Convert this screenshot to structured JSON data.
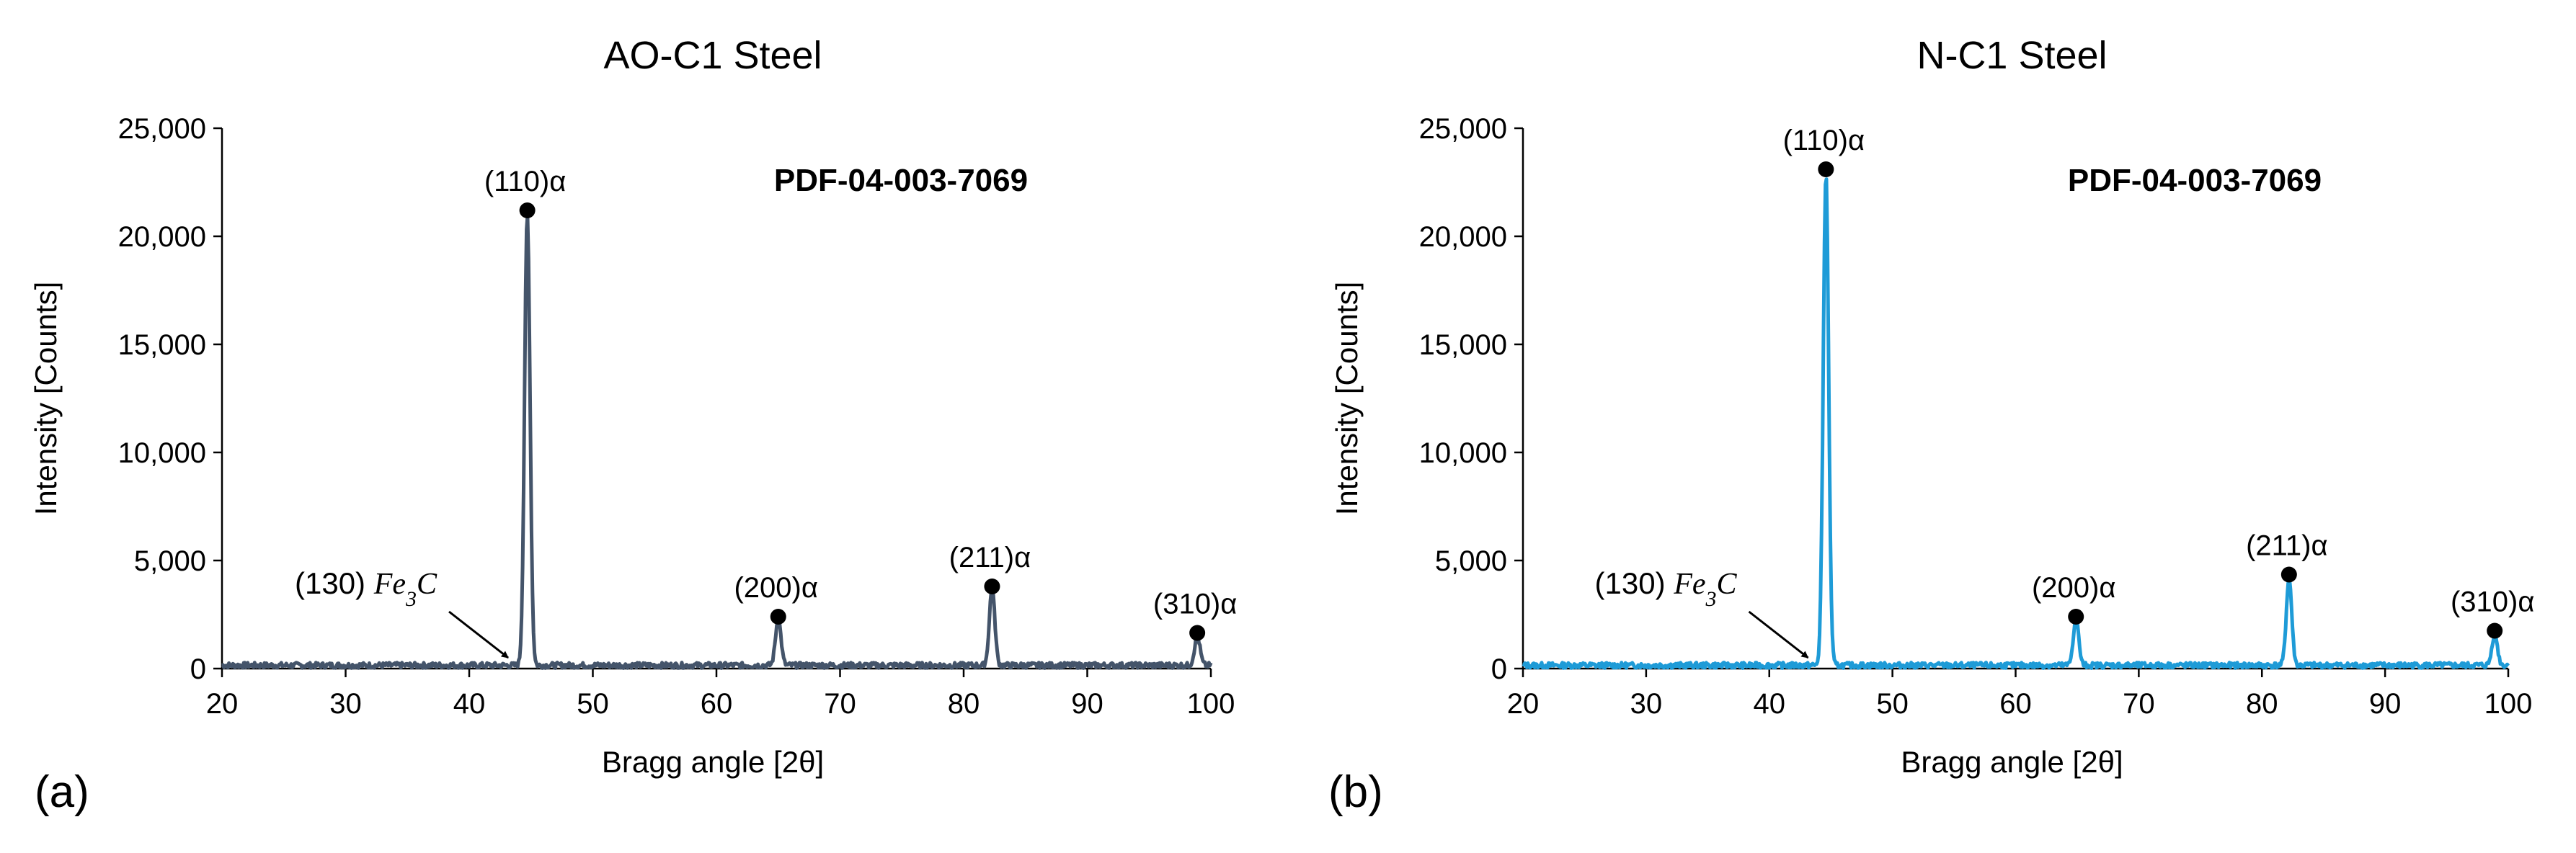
{
  "chart_data": [
    {
      "type": "line",
      "panel_label": "(a)",
      "title": "AO-C1 Steel",
      "xlabel": "Bragg angle [2θ]",
      "ylabel": "Intensity [Counts]",
      "xlim": [
        20,
        100
      ],
      "ylim": [
        0,
        25000
      ],
      "x_ticks": [
        "20",
        "30",
        "40",
        "50",
        "60",
        "70",
        "80",
        "90",
        "100"
      ],
      "y_ticks": [
        "0",
        "5,000",
        "10,000",
        "15,000",
        "20,000",
        "25,000"
      ],
      "grid": false,
      "color": "#44546a",
      "reference_card": "PDF-04-003-7069",
      "baseline": 150,
      "series": [
        {
          "peaks": [
            {
              "x": 44.7,
              "y": 21000
            },
            {
              "x": 65.0,
              "y": 2300
            },
            {
              "x": 82.3,
              "y": 3700
            },
            {
              "x": 98.9,
              "y": 1500
            }
          ]
        }
      ],
      "annotations": [
        {
          "label": "(110)α",
          "x": 44.7,
          "y": 21200
        },
        {
          "label": "(200)α",
          "x": 65.0,
          "y": 2400
        },
        {
          "label": "(211)α",
          "x": 82.3,
          "y": 3800
        },
        {
          "label": "(310)α",
          "x": 98.9,
          "y": 1650
        },
        {
          "label_prefix": "(130)",
          "label_math": "Fe",
          "label_sub": "3",
          "label_suffix": "C",
          "x": 43.5,
          "y": 300,
          "arrow": true
        }
      ]
    },
    {
      "type": "line",
      "panel_label": "(b)",
      "title": "N-C1 Steel",
      "xlabel": "Bragg angle [2θ]",
      "ylabel": "Intensity [Counts]",
      "xlim": [
        20,
        100
      ],
      "ylim": [
        0,
        25000
      ],
      "x_ticks": [
        "20",
        "30",
        "40",
        "50",
        "60",
        "70",
        "80",
        "90",
        "100"
      ],
      "y_ticks": [
        "0",
        "5,000",
        "10,000",
        "15,000",
        "20,000",
        "25,000"
      ],
      "grid": false,
      "color": "#1e9bd7",
      "reference_card": "PDF-04-003-7069",
      "baseline": 150,
      "series": [
        {
          "peaks": [
            {
              "x": 44.6,
              "y": 22900
            },
            {
              "x": 64.9,
              "y": 2300
            },
            {
              "x": 82.2,
              "y": 4200
            },
            {
              "x": 98.9,
              "y": 1600
            }
          ]
        }
      ],
      "annotations": [
        {
          "label": "(110)α",
          "x": 44.6,
          "y": 23100
        },
        {
          "label": "(200)α",
          "x": 64.9,
          "y": 2400
        },
        {
          "label": "(211)α",
          "x": 82.2,
          "y": 4350
        },
        {
          "label": "(310)α",
          "x": 98.9,
          "y": 1750
        },
        {
          "label_prefix": "(130)",
          "label_math": "Fe",
          "label_sub": "3",
          "label_suffix": "C",
          "x": 43.5,
          "y": 300,
          "arrow": true
        }
      ]
    }
  ]
}
